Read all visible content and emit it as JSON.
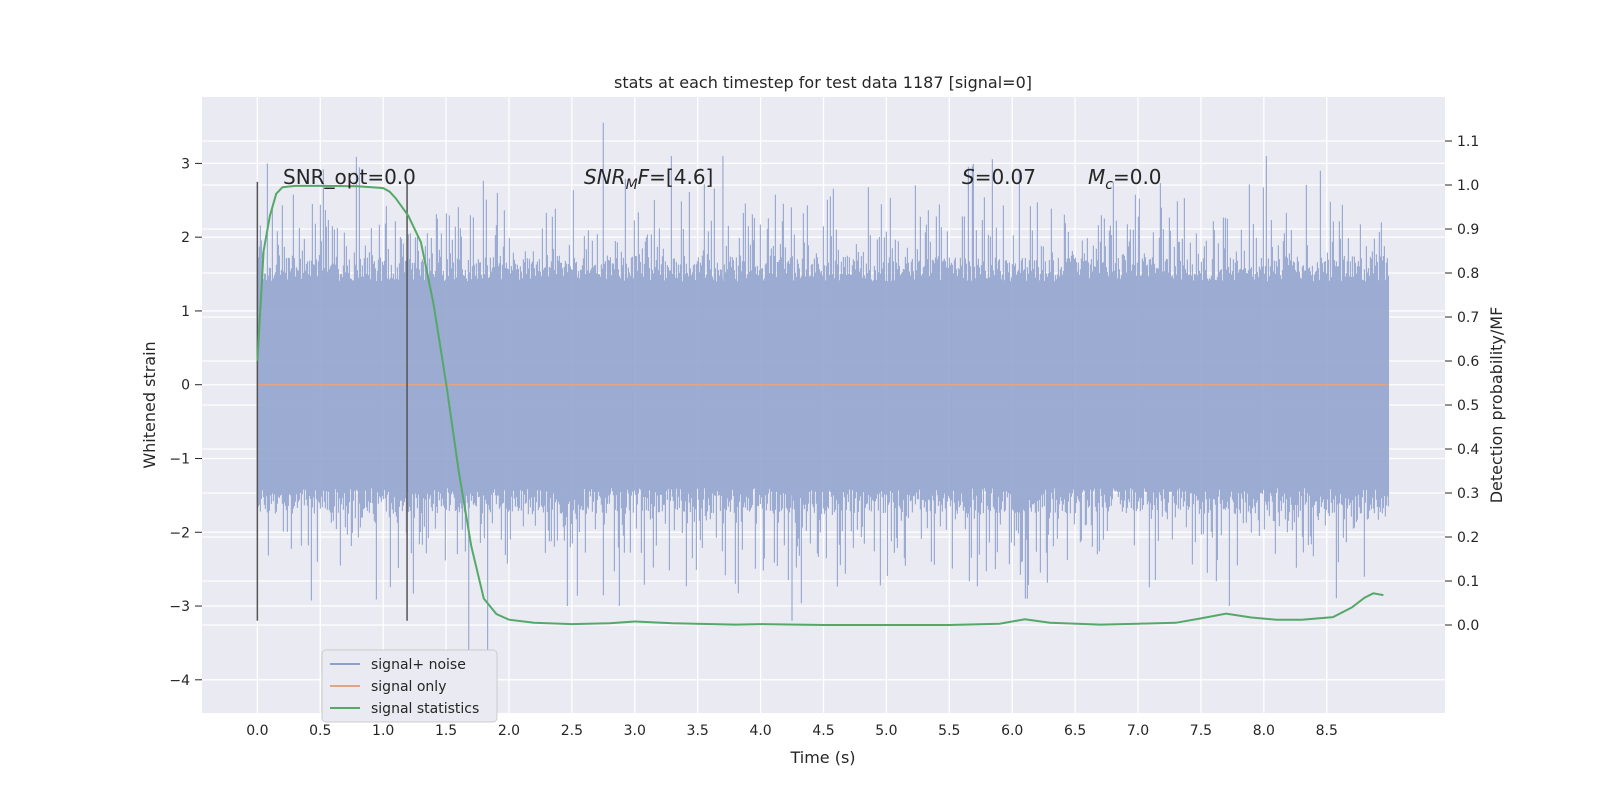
{
  "chart_data": {
    "type": "line",
    "title": "stats at each timestep for test data 1187 [signal=0]",
    "xlabel": "Time (s)",
    "ylabel": "Whitened strain",
    "y2label": "Detection probability/MF",
    "xlim": [
      -0.44,
      9.44
    ],
    "ylim": [
      -4.45,
      3.9
    ],
    "y2lim": [
      -0.2,
      1.2
    ],
    "grid": true,
    "x_ticks": [
      "0.0",
      "0.5",
      "1.0",
      "1.5",
      "2.0",
      "2.5",
      "3.0",
      "3.5",
      "4.0",
      "4.5",
      "5.0",
      "5.5",
      "6.0",
      "6.5",
      "7.0",
      "7.5",
      "8.0",
      "8.5"
    ],
    "y_ticks": [
      "3",
      "2",
      "1",
      "0",
      "−1",
      "−2",
      "−3",
      "−4"
    ],
    "y2_ticks": [
      "1.1",
      "1.0",
      "0.9",
      "0.8",
      "0.7",
      "0.6",
      "0.5",
      "0.4",
      "0.3",
      "0.2",
      "0.1",
      "0.0"
    ],
    "annotations": {
      "snr_opt": "SNR_opt=0.0",
      "snr_mf_main": "SNR",
      "snr_mf_sub": "M",
      "snr_mf_rest": "F=[4.6]",
      "s_main": "S",
      "s_rest": "=0.07",
      "mc_main": "M",
      "mc_sub": "c",
      "mc_rest": "=0.0"
    },
    "vlines_x": [
      0.0,
      1.19
    ],
    "legend": {
      "position": "lower-left",
      "entries": [
        "signal+ noise",
        "signal only",
        "signal statistics"
      ]
    },
    "series": [
      {
        "name": "signal+ noise",
        "color": "#8da0cb",
        "x_range": [
          0.0,
          8.99
        ],
        "envelope_typical": [
          -1.6,
          1.6
        ],
        "extremes": {
          "max": 3.55,
          "min": -4.35
        }
      },
      {
        "name": "signal only",
        "color": "#e1a487",
        "x": [
          0.0,
          8.99
        ],
        "y": [
          0.0,
          0.0
        ]
      },
      {
        "name": "signal statistics",
        "color": "#55a868",
        "axis": "y2",
        "x": [
          0.0,
          0.05,
          0.1,
          0.15,
          0.2,
          0.3,
          0.5,
          0.8,
          1.0,
          1.05,
          1.1,
          1.2,
          1.3,
          1.4,
          1.5,
          1.6,
          1.7,
          1.8,
          1.9,
          2.0,
          2.2,
          2.5,
          2.8,
          3.0,
          3.3,
          3.8,
          4.0,
          4.5,
          5.0,
          5.5,
          5.9,
          6.1,
          6.3,
          6.7,
          7.0,
          7.3,
          7.5,
          7.7,
          7.9,
          8.1,
          8.3,
          8.55,
          8.7,
          8.8,
          8.87,
          8.95
        ],
        "y": [
          0.6,
          0.85,
          0.93,
          0.98,
          0.995,
          0.998,
          0.998,
          0.997,
          0.993,
          0.985,
          0.97,
          0.93,
          0.87,
          0.73,
          0.55,
          0.35,
          0.18,
          0.06,
          0.025,
          0.012,
          0.005,
          0.002,
          0.004,
          0.008,
          0.004,
          0.001,
          0.002,
          0.0,
          0.0,
          0.0,
          0.003,
          0.013,
          0.005,
          0.001,
          0.003,
          0.005,
          0.015,
          0.026,
          0.017,
          0.012,
          0.012,
          0.018,
          0.04,
          0.062,
          0.072,
          0.068
        ]
      }
    ]
  }
}
